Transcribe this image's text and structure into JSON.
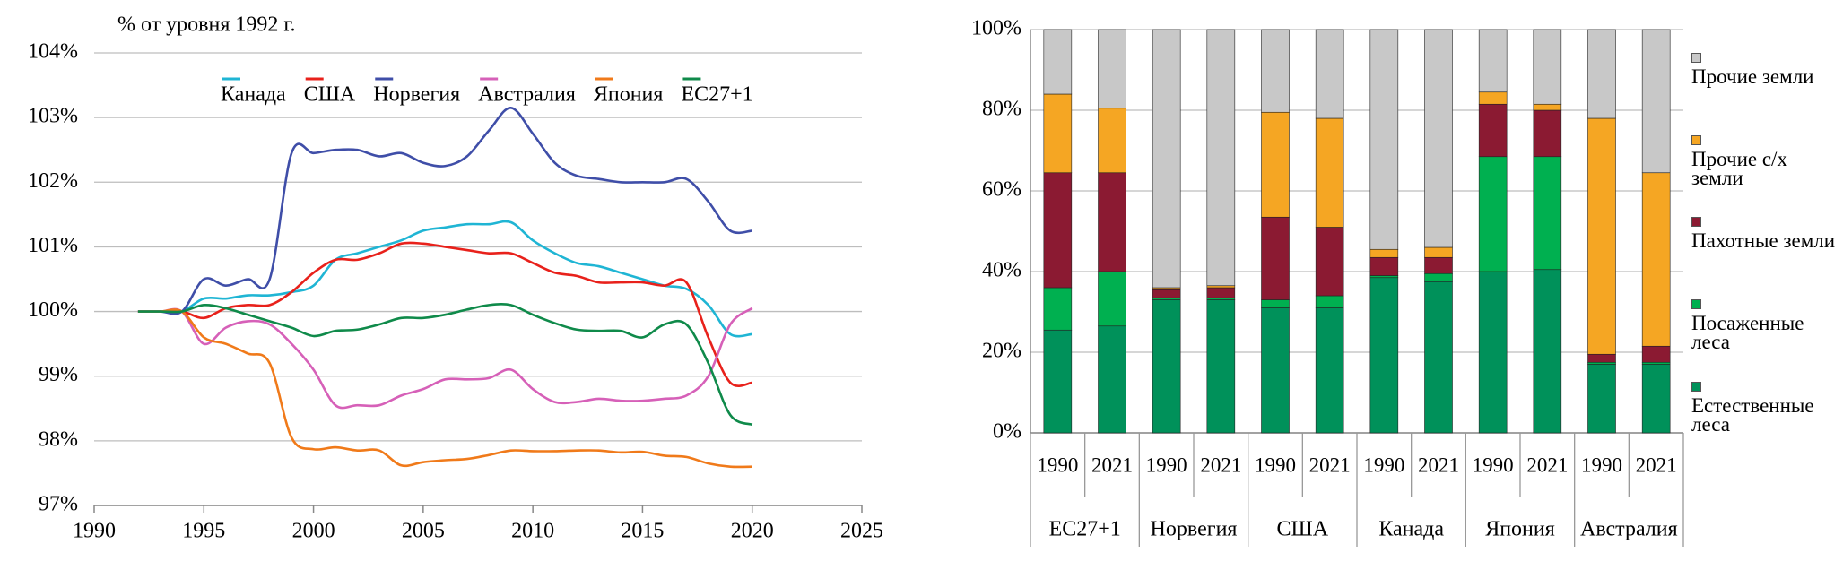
{
  "chart_data": [
    {
      "type": "line",
      "ylabel": "% от уровня 1992 г.",
      "xlim": [
        1990,
        2025
      ],
      "xticks": [
        1990,
        1995,
        2000,
        2005,
        2010,
        2015,
        2020,
        2025
      ],
      "ylim": [
        97,
        104
      ],
      "yticks": [
        {
          "value": 97,
          "label": "97%"
        },
        {
          "value": 98,
          "label": "98%"
        },
        {
          "value": 99,
          "label": "99%"
        },
        {
          "value": 100,
          "label": "100%"
        },
        {
          "value": 101,
          "label": "101%"
        },
        {
          "value": 102,
          "label": "102%"
        },
        {
          "value": 103,
          "label": "103%"
        },
        {
          "value": 104,
          "label": "104%"
        }
      ],
      "grid": true,
      "x": [
        1992,
        1993,
        1994,
        1995,
        1996,
        1997,
        1998,
        1999,
        2000,
        2001,
        2002,
        2003,
        2004,
        2005,
        2006,
        2007,
        2008,
        2009,
        2010,
        2011,
        2012,
        2013,
        2014,
        2015,
        2016,
        2017,
        2018,
        2019,
        2020
      ],
      "series": [
        {
          "name": "Канада",
          "color": "#1fb5d4",
          "values": [
            100,
            100,
            100,
            100.2,
            100.2,
            100.25,
            100.25,
            100.3,
            100.4,
            100.8,
            100.9,
            101.0,
            101.1,
            101.25,
            101.3,
            101.35,
            101.35,
            101.38,
            101.1,
            100.9,
            100.75,
            100.7,
            100.6,
            100.5,
            100.4,
            100.35,
            100.1,
            99.65,
            99.65
          ]
        },
        {
          "name": "США",
          "color": "#e8211b",
          "values": [
            100,
            100,
            100,
            99.9,
            100.05,
            100.1,
            100.1,
            100.3,
            100.6,
            100.8,
            100.8,
            100.9,
            101.05,
            101.05,
            101.0,
            100.95,
            100.9,
            100.9,
            100.75,
            100.6,
            100.55,
            100.45,
            100.45,
            100.45,
            100.4,
            100.45,
            99.6,
            98.9,
            98.9
          ]
        },
        {
          "name": "Норвегия",
          "color": "#3f4ea8",
          "values": [
            100,
            100,
            100,
            100.5,
            100.4,
            100.5,
            100.5,
            102.45,
            102.45,
            102.5,
            102.5,
            102.4,
            102.45,
            102.3,
            102.25,
            102.4,
            102.8,
            103.15,
            102.75,
            102.3,
            102.1,
            102.05,
            102.0,
            102.0,
            102.0,
            102.05,
            101.7,
            101.25,
            101.25
          ]
        },
        {
          "name": "Австралия",
          "color": "#d660b8",
          "values": [
            100,
            100,
            100,
            99.5,
            99.75,
            99.85,
            99.8,
            99.5,
            99.1,
            98.55,
            98.55,
            98.55,
            98.7,
            98.8,
            98.95,
            98.95,
            98.97,
            99.1,
            98.8,
            98.6,
            98.6,
            98.65,
            98.62,
            98.62,
            98.65,
            98.7,
            99.0,
            99.8,
            100.05
          ]
        },
        {
          "name": "Япония",
          "color": "#f07a1a",
          "values": [
            100,
            100,
            100,
            99.6,
            99.5,
            99.35,
            99.2,
            98.05,
            97.87,
            97.9,
            97.85,
            97.85,
            97.62,
            97.67,
            97.7,
            97.72,
            97.78,
            97.85,
            97.84,
            97.84,
            97.85,
            97.85,
            97.82,
            97.83,
            97.77,
            97.75,
            97.65,
            97.6,
            97.6
          ]
        },
        {
          "name": "ЕС27+1",
          "color": "#0f8a4a",
          "values": [
            100,
            100,
            100,
            100.1,
            100.05,
            99.95,
            99.85,
            99.75,
            99.62,
            99.7,
            99.72,
            99.8,
            99.9,
            99.9,
            99.95,
            100.03,
            100.1,
            100.1,
            99.95,
            99.82,
            99.72,
            99.7,
            99.7,
            99.6,
            99.8,
            99.8,
            99.2,
            98.4,
            98.25
          ]
        }
      ]
    },
    {
      "type": "bar",
      "stacked": true,
      "ylim": [
        0,
        100
      ],
      "yticks": [
        {
          "value": 0,
          "label": "0%"
        },
        {
          "value": 20,
          "label": "20%"
        },
        {
          "value": 40,
          "label": "40%"
        },
        {
          "value": 60,
          "label": "60%"
        },
        {
          "value": 80,
          "label": "80%"
        },
        {
          "value": 100,
          "label": "100%"
        }
      ],
      "grid": true,
      "categories": [
        "1990",
        "2021",
        "1990",
        "2021",
        "1990",
        "2021",
        "1990",
        "2021",
        "1990",
        "2021",
        "1990",
        "2021"
      ],
      "groups": [
        "ЕС27+1",
        "Норвегия",
        "США",
        "Канада",
        "Япония",
        "Австралия"
      ],
      "series": [
        {
          "name": "Естественные леса",
          "color": "#00915a",
          "values": [
            25.5,
            26.5,
            33,
            33,
            31,
            31,
            38.5,
            37.5,
            40,
            40.5,
            17,
            17
          ]
        },
        {
          "name": "Посаженные леса",
          "color": "#00b050",
          "values": [
            10.5,
            13.5,
            0.5,
            0.5,
            2,
            3,
            0.5,
            2,
            28.5,
            28,
            0.5,
            0.5
          ]
        },
        {
          "name": "Пахотные земли",
          "color": "#8b1a32",
          "values": [
            28.5,
            24.5,
            2,
            2.5,
            20.5,
            17,
            4.5,
            4,
            13,
            11.5,
            2,
            4
          ]
        },
        {
          "name": "Прочие с/х земли",
          "color": "#f5a623",
          "values": [
            19.5,
            16,
            0.5,
            0.5,
            26,
            27,
            2,
            2.5,
            3,
            1.5,
            58.5,
            43
          ]
        },
        {
          "name": "Прочие земли",
          "color": "#c8c8c8",
          "values": [
            16,
            19.5,
            64,
            63.5,
            20.5,
            22,
            54.5,
            54,
            15.5,
            18.5,
            22,
            35.5
          ]
        }
      ]
    }
  ]
}
